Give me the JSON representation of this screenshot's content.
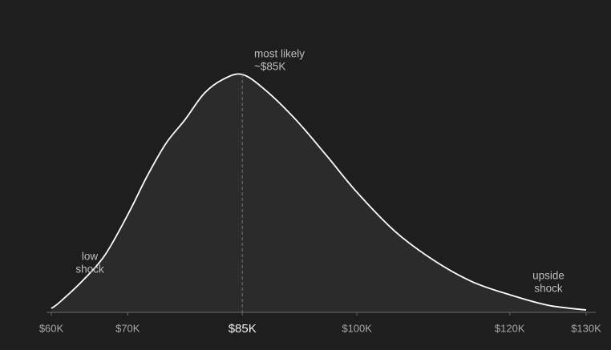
{
  "chart_data": {
    "type": "area",
    "x": [
      60000,
      61000,
      64000,
      67000,
      70000,
      72500,
      75000,
      77500,
      80000,
      82500,
      85000,
      88000,
      92000,
      96000,
      100000,
      105000,
      110000,
      115000,
      120000,
      125000,
      130000
    ],
    "values": [
      1.7,
      4,
      13,
      24,
      41,
      57,
      71,
      81,
      92,
      98,
      100,
      93.5,
      81,
      66,
      50.5,
      34,
      22,
      13,
      7.4,
      3,
      1
    ],
    "color": "#ffffff",
    "fill": "#2b2b2b",
    "xlim": [
      60000,
      130000
    ],
    "xticks": [
      {
        "value": 60000,
        "label": "$60K"
      },
      {
        "value": 70000,
        "label": "$70K"
      },
      {
        "value": 85000,
        "label": "$85K"
      },
      {
        "value": 100000,
        "label": "$100K"
      },
      {
        "value": 120000,
        "label": "$120K"
      },
      {
        "value": 130000,
        "label": "$130K"
      }
    ],
    "ylim": [
      0,
      100
    ],
    "annotations": [
      {
        "lines": [
          "most likely",
          "~$85K"
        ]
      },
      {
        "lines": [
          "low",
          "shock"
        ]
      },
      {
        "lines": [
          "upside",
          "shock"
        ]
      }
    ]
  }
}
